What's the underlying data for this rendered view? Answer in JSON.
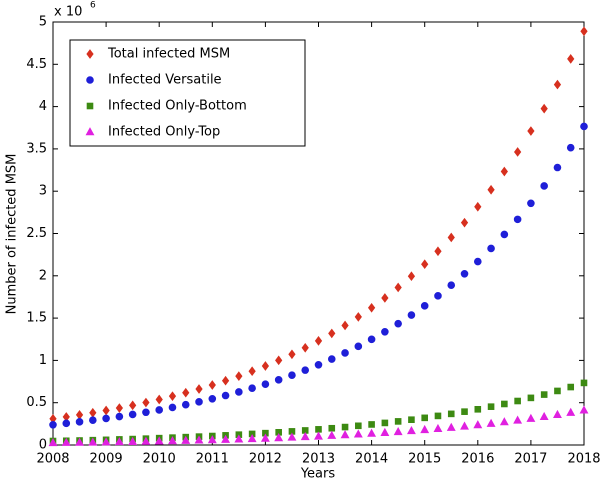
{
  "chart_data": {
    "type": "scatter",
    "xlabel": "Years",
    "ylabel": "Number of infected MSM",
    "y_multiplier": {
      "base": "x 10",
      "exponent": "6"
    },
    "x": [
      2008,
      2008.25,
      2008.5,
      2008.75,
      2009,
      2009.25,
      2009.5,
      2009.75,
      2010,
      2010.25,
      2010.5,
      2010.75,
      2011,
      2011.25,
      2011.5,
      2011.75,
      2012,
      2012.25,
      2012.5,
      2012.75,
      2013,
      2013.25,
      2013.5,
      2013.75,
      2014,
      2014.25,
      2014.5,
      2014.75,
      2015,
      2015.25,
      2015.5,
      2015.75,
      2016,
      2016.25,
      2016.5,
      2016.75,
      2017,
      2017.25,
      2017.5,
      2017.75,
      2018
    ],
    "series": [
      {
        "name": "Total infected MSM",
        "color": "#d7301f",
        "marker": "diamond",
        "values": [
          0.31,
          0.332,
          0.356,
          0.381,
          0.408,
          0.437,
          0.469,
          0.502,
          0.538,
          0.577,
          0.618,
          0.662,
          0.709,
          0.76,
          0.814,
          0.872,
          0.934,
          1.001,
          1.072,
          1.149,
          1.231,
          1.319,
          1.413,
          1.514,
          1.622,
          1.738,
          1.862,
          1.995,
          2.137,
          2.29,
          2.453,
          2.628,
          2.816,
          3.017,
          3.233,
          3.464,
          3.711,
          3.976,
          4.26,
          4.564,
          4.89
        ]
      },
      {
        "name": "Infected Versatile",
        "color": "#1f1fd8",
        "marker": "circle",
        "values": [
          0.239,
          0.256,
          0.274,
          0.293,
          0.314,
          0.336,
          0.361,
          0.387,
          0.414,
          0.444,
          0.476,
          0.51,
          0.546,
          0.585,
          0.627,
          0.671,
          0.719,
          0.771,
          0.825,
          0.885,
          0.948,
          1.016,
          1.088,
          1.166,
          1.249,
          1.338,
          1.434,
          1.536,
          1.645,
          1.763,
          1.889,
          2.024,
          2.168,
          2.323,
          2.489,
          2.667,
          2.857,
          3.062,
          3.28,
          3.514,
          3.765
        ]
      },
      {
        "name": "Infected Only-Bottom",
        "color": "#3d8a12",
        "marker": "square",
        "values": [
          0.047,
          0.05,
          0.053,
          0.057,
          0.061,
          0.066,
          0.07,
          0.075,
          0.081,
          0.087,
          0.093,
          0.099,
          0.106,
          0.114,
          0.122,
          0.131,
          0.14,
          0.15,
          0.161,
          0.172,
          0.185,
          0.198,
          0.212,
          0.227,
          0.243,
          0.261,
          0.279,
          0.299,
          0.321,
          0.344,
          0.368,
          0.394,
          0.422,
          0.453,
          0.485,
          0.52,
          0.557,
          0.596,
          0.639,
          0.685,
          0.734
        ]
      },
      {
        "name": "Infected Only-Top",
        "color": "#e020e0",
        "marker": "triangle",
        "values": [
          0.026,
          0.028,
          0.03,
          0.032,
          0.034,
          0.037,
          0.039,
          0.042,
          0.045,
          0.048,
          0.052,
          0.056,
          0.06,
          0.064,
          0.068,
          0.073,
          0.078,
          0.084,
          0.09,
          0.097,
          0.103,
          0.111,
          0.119,
          0.127,
          0.136,
          0.146,
          0.156,
          0.168,
          0.18,
          0.192,
          0.206,
          0.221,
          0.237,
          0.253,
          0.272,
          0.291,
          0.312,
          0.334,
          0.358,
          0.383,
          0.411
        ]
      }
    ],
    "xlim": [
      2008,
      2018
    ],
    "xticks": [
      2008,
      2009,
      2010,
      2011,
      2012,
      2013,
      2014,
      2015,
      2016,
      2017,
      2018
    ],
    "ylim": [
      0,
      5
    ],
    "yticks": [
      0,
      0.5,
      1,
      1.5,
      2,
      2.5,
      3,
      3.5,
      4,
      4.5,
      5
    ],
    "grid": false,
    "legend": "upper left"
  }
}
